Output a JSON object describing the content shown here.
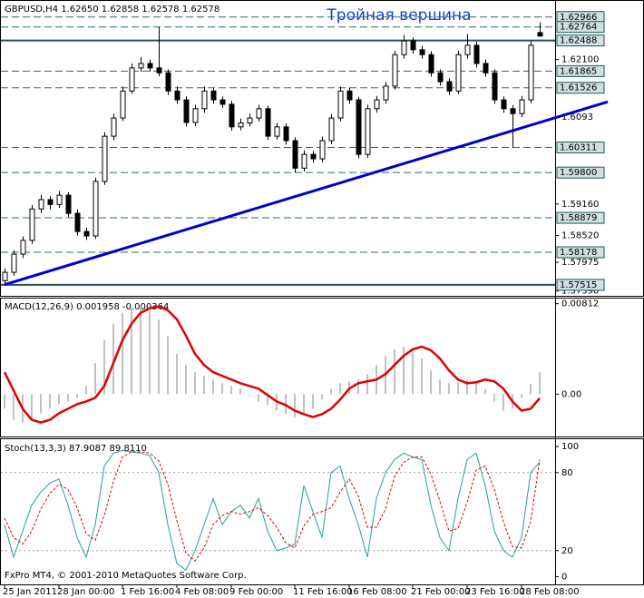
{
  "chart_data": [
    {
      "type": "candlestick",
      "title": "GBPUSD,H4  1.62650 1.62858 1.62578 1.62578",
      "annotation": "Тройная вершина",
      "open": [
        1.576,
        1.5777,
        1.5814,
        1.5842,
        1.5906,
        1.5925,
        1.5915,
        1.5934,
        1.5897,
        1.586,
        1.5851,
        1.5962,
        1.6054,
        1.6091,
        1.6146,
        1.6193,
        1.6202,
        1.6193,
        1.6183,
        1.6146,
        1.6128,
        1.6082,
        1.611,
        1.6146,
        1.6128,
        1.6119,
        1.6073,
        1.6081,
        1.6091,
        1.611,
        1.6054,
        1.6073,
        1.6045,
        1.5989,
        1.6017,
        1.6008,
        1.6045,
        1.6091,
        1.6146,
        1.6128,
        1.6017,
        1.611,
        1.6128,
        1.6156,
        1.622,
        1.6248,
        1.623,
        1.622,
        1.6183,
        1.6165,
        1.6146,
        1.622,
        1.6239,
        1.6202,
        1.6183,
        1.6128,
        1.611,
        1.61,
        1.6128,
        1.6265
      ],
      "high": [
        1.5785,
        1.5822,
        1.585,
        1.5914,
        1.5935,
        1.5932,
        1.5942,
        1.594,
        1.5905,
        1.5868,
        1.597,
        1.6062,
        1.61,
        1.6155,
        1.6202,
        1.6215,
        1.621,
        1.6276,
        1.619,
        1.6155,
        1.6135,
        1.6118,
        1.6155,
        1.6152,
        1.6135,
        1.6126,
        1.609,
        1.61,
        1.6118,
        1.6116,
        1.6081,
        1.608,
        1.6052,
        1.6025,
        1.6024,
        1.6053,
        1.6099,
        1.6155,
        1.6153,
        1.6134,
        1.6118,
        1.6136,
        1.6164,
        1.6228,
        1.626,
        1.6255,
        1.6238,
        1.6227,
        1.619,
        1.6172,
        1.6228,
        1.6262,
        1.6246,
        1.621,
        1.619,
        1.6135,
        1.6117,
        1.6136,
        1.6247,
        1.62858
      ],
      "low": [
        1.5752,
        1.577,
        1.5806,
        1.5835,
        1.5898,
        1.5905,
        1.5908,
        1.589,
        1.5852,
        1.5843,
        1.5845,
        1.5955,
        1.6046,
        1.6085,
        1.614,
        1.6185,
        1.6186,
        1.6176,
        1.6138,
        1.612,
        1.6074,
        1.6075,
        1.6102,
        1.612,
        1.6112,
        1.6065,
        1.6066,
        1.6074,
        1.6084,
        1.6046,
        1.6047,
        1.6037,
        1.598,
        1.5982,
        1.6,
        1.6001,
        1.6038,
        1.6084,
        1.612,
        1.6009,
        1.601,
        1.6102,
        1.612,
        1.6149,
        1.6212,
        1.6222,
        1.6212,
        1.6175,
        1.6157,
        1.6138,
        1.614,
        1.6212,
        1.6194,
        1.6175,
        1.612,
        1.6102,
        1.6031,
        1.6093,
        1.6121,
        1.62578
      ],
      "close": [
        1.5777,
        1.5814,
        1.5842,
        1.5906,
        1.5925,
        1.5915,
        1.5934,
        1.5897,
        1.586,
        1.5851,
        1.5962,
        1.6054,
        1.6091,
        1.6146,
        1.6193,
        1.6202,
        1.6193,
        1.6183,
        1.6146,
        1.6128,
        1.6082,
        1.611,
        1.6146,
        1.6128,
        1.6119,
        1.6073,
        1.6081,
        1.6091,
        1.611,
        1.6054,
        1.6073,
        1.6045,
        1.5989,
        1.6017,
        1.6008,
        1.6045,
        1.6091,
        1.6146,
        1.6128,
        1.6017,
        1.611,
        1.6128,
        1.6156,
        1.622,
        1.6248,
        1.623,
        1.622,
        1.6183,
        1.6165,
        1.6146,
        1.622,
        1.6239,
        1.6202,
        1.6183,
        1.6128,
        1.611,
        1.61,
        1.6128,
        1.6239,
        1.62578
      ],
      "ylim": [
        1.5731,
        1.6322
      ],
      "yticks": [
        {
          "value": 1.621,
          "label": "1.62100"
        },
        1.6093,
        {
          "value": 1.5916,
          "label": "1.59160"
        },
        {
          "value": 1.5852,
          "label": "1.58520"
        },
        1.57975,
        {
          "value": 1.5739,
          "label": "1.57390"
        }
      ],
      "levels": [
        {
          "value": 1.62966,
          "style": "dashed"
        },
        {
          "value": 1.62764,
          "style": "dashed"
        },
        {
          "value": 1.62488,
          "style": "solid"
        },
        {
          "value": 1.61865,
          "style": "dashed"
        },
        {
          "value": 1.61526,
          "style": "dashed"
        },
        {
          "value": 1.60311,
          "style": "dashed"
        },
        {
          "value": 1.598,
          "label": "1.59800",
          "style": "dashed"
        },
        {
          "value": 1.58879,
          "style": "dashed"
        },
        {
          "value": 1.58178,
          "style": "dashed"
        },
        {
          "value": 1.57515,
          "style": "solid"
        }
      ],
      "trendline": {
        "x": [
          0,
          66.5
        ],
        "values": [
          1.5752,
          1.6124
        ],
        "color": "#0000cc"
      }
    },
    {
      "type": "macd",
      "title": "MACD(12,26,9) 0.001958 -0.000364",
      "series": [
        {
          "name": "MACD",
          "color": "#c0c0c0",
          "values": [
            -0.00131,
            -0.0023,
            -0.00254,
            -0.0023,
            -0.00172,
            -0.00131,
            -0.0009,
            -0.00066,
            -0.00033,
            0.00074,
            0.00279,
            0.00484,
            0.00631,
            0.0073,
            0.00771,
            0.00787,
            0.00754,
            0.00672,
            0.00525,
            0.00361,
            0.00262,
            0.00197,
            0.00164,
            0.00131,
            0.00098,
            0.00074,
            0.00049,
            -8e-05,
            -0.00066,
            -0.00098,
            -0.00148,
            -0.0018,
            -0.00205,
            -0.0018,
            -0.00131,
            -0.00049,
            0.00049,
            0.00098,
            0.00115,
            0.00131,
            0.0018,
            0.00262,
            0.00344,
            0.00402,
            0.00426,
            0.00394,
            0.0032,
            0.00213,
            0.00131,
            0.00098,
            0.00107,
            0.00131,
            0.00115,
            0.00049,
            -0.00066,
            -0.00148,
            -0.00131,
            -0.00033,
            0.0009,
            0.001958
          ]
        },
        {
          "name": "Signal",
          "color": "#dd0000",
          "values": [
            0.00197,
            0.00033,
            -0.00131,
            -0.0023,
            -0.00254,
            -0.0023,
            -0.00172,
            -0.00131,
            -0.0009,
            -0.00066,
            -0.00033,
            0.00074,
            0.00279,
            0.00484,
            0.00631,
            0.0073,
            0.00771,
            0.00787,
            0.00754,
            0.00672,
            0.00525,
            0.00361,
            0.00262,
            0.00197,
            0.00164,
            0.00131,
            0.00098,
            0.00074,
            0.00049,
            -8e-05,
            -0.00066,
            -0.00098,
            -0.00148,
            -0.0018,
            -0.00205,
            -0.0018,
            -0.00131,
            -0.00049,
            0.00049,
            0.00098,
            0.00115,
            0.00131,
            0.0018,
            0.00262,
            0.00344,
            0.00402,
            0.00426,
            0.00394,
            0.0032,
            0.00213,
            0.00131,
            0.00098,
            0.00107,
            0.00131,
            0.00115,
            0.00049,
            -0.00066,
            -0.00148,
            -0.00131,
            -0.000364
          ]
        }
      ],
      "ylim": [
        -0.0038,
        0.0085
      ],
      "yticks": [
        0.00812,
        {
          "value": 0,
          "label": "0.00"
        }
      ]
    },
    {
      "type": "line",
      "title": "Stoch(13,3,3) 87.9087 89.8110",
      "footer": "FxPro MT4, © 2001-2010 MetaQuotes Software Corp.",
      "categories": [
        "25 Jan 2011",
        null,
        null,
        null,
        null,
        null,
        "28 Jan 00:00",
        null,
        null,
        null,
        null,
        null,
        null,
        "1 Feb 16:00",
        null,
        null,
        null,
        null,
        null,
        "4 Feb 08:00",
        null,
        null,
        null,
        null,
        null,
        "9 Feb 00:00",
        null,
        null,
        null,
        null,
        null,
        null,
        "11 Feb 16:00",
        null,
        null,
        null,
        null,
        null,
        "16 Feb 08:00",
        null,
        null,
        null,
        null,
        null,
        null,
        "21 Feb 00:00",
        null,
        null,
        null,
        null,
        null,
        "23 Feb 16:00",
        null,
        null,
        null,
        null,
        null,
        "28 Feb 08:00",
        null,
        null
      ],
      "series": [
        {
          "name": "Main",
          "color": "#20a0a0",
          "dashed": false,
          "values": [
            40,
            15,
            35,
            55,
            65,
            72,
            75,
            55,
            30,
            15,
            40,
            85,
            95,
            97,
            96,
            95,
            93,
            80,
            40,
            10,
            5,
            20,
            40,
            60,
            40,
            50,
            55,
            45,
            60,
            35,
            20,
            22,
            25,
            70,
            50,
            30,
            80,
            85,
            60,
            40,
            15,
            60,
            80,
            90,
            95,
            92,
            90,
            55,
            30,
            20,
            60,
            90,
            95,
            70,
            35,
            20,
            15,
            30,
            80,
            87.9087
          ]
        },
        {
          "name": "Signal",
          "color": "#dd0000",
          "dashed": true,
          "values": [
            45,
            30,
            25,
            35,
            52,
            64,
            71,
            67,
            53,
            33,
            28,
            47,
            73,
            92,
            96,
            96,
            95,
            89,
            71,
            43,
            18,
            12,
            22,
            40,
            47,
            50,
            48,
            50,
            53,
            47,
            38,
            26,
            22,
            39,
            48,
            50,
            53,
            65,
            75,
            62,
            38,
            38,
            52,
            77,
            88,
            92,
            92,
            79,
            58,
            35,
            37,
            57,
            82,
            85,
            67,
            42,
            23,
            22,
            42,
            89.811
          ]
        }
      ],
      "ylim": [
        -6,
        105
      ],
      "yticks": [
        100,
        80,
        20,
        0
      ],
      "levels": [
        80,
        20
      ]
    }
  ]
}
